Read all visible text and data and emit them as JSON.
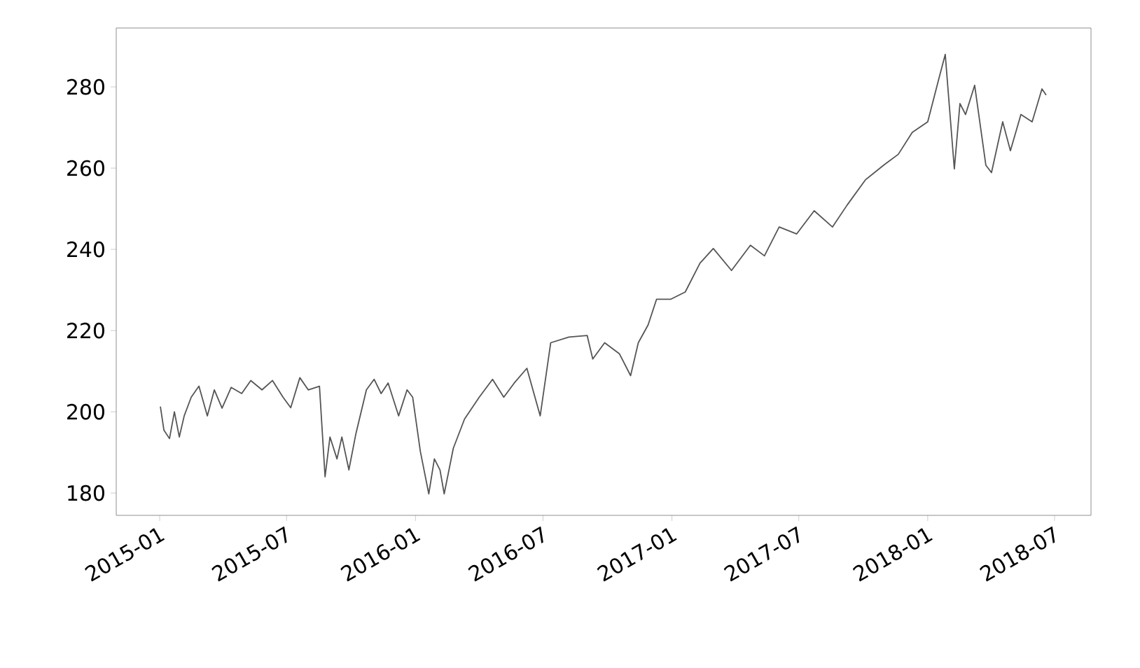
{
  "chart_data": {
    "type": "line",
    "xlim": [
      "2014-10-31",
      "2018-08-22"
    ],
    "ylim": [
      174.5,
      294.5
    ],
    "xticks": [
      "2015-01",
      "2015-07",
      "2016-01",
      "2016-07",
      "2017-01",
      "2017-07",
      "2018-01",
      "2018-07"
    ],
    "yticks": [
      180,
      200,
      220,
      240,
      260,
      280
    ],
    "x": [
      "2015-01-02",
      "2015-01-07",
      "2015-01-15",
      "2015-01-22",
      "2015-01-29",
      "2015-02-05",
      "2015-02-15",
      "2015-02-26",
      "2015-03-10",
      "2015-03-20",
      "2015-03-31",
      "2015-04-13",
      "2015-04-28",
      "2015-05-11",
      "2015-05-27",
      "2015-06-11",
      "2015-06-26",
      "2015-07-07",
      "2015-07-20",
      "2015-08-01",
      "2015-08-17",
      "2015-08-25",
      "2015-09-01",
      "2015-09-11",
      "2015-09-18",
      "2015-09-28",
      "2015-10-08",
      "2015-10-23",
      "2015-11-03",
      "2015-11-13",
      "2015-11-23",
      "2015-12-08",
      "2015-12-20",
      "2015-12-28",
      "2016-01-08",
      "2016-01-20",
      "2016-01-28",
      "2016-02-05",
      "2016-02-11",
      "2016-02-24",
      "2016-03-11",
      "2016-04-01",
      "2016-04-20",
      "2016-05-06",
      "2016-05-21",
      "2016-06-08",
      "2016-06-27",
      "2016-07-12",
      "2016-08-07",
      "2016-09-02",
      "2016-09-10",
      "2016-09-27",
      "2016-10-18",
      "2016-11-03",
      "2016-11-14",
      "2016-11-28",
      "2016-12-10",
      "2016-12-30",
      "2017-01-20",
      "2017-02-10",
      "2017-03-01",
      "2017-03-27",
      "2017-04-23",
      "2017-05-13",
      "2017-06-03",
      "2017-06-28",
      "2017-07-23",
      "2017-08-18",
      "2017-09-08",
      "2017-10-04",
      "2017-10-30",
      "2017-11-20",
      "2017-12-10",
      "2018-01-01",
      "2018-01-17",
      "2018-01-26",
      "2018-02-08",
      "2018-02-16",
      "2018-02-24",
      "2018-03-09",
      "2018-03-25",
      "2018-04-02",
      "2018-04-18",
      "2018-04-29",
      "2018-05-14",
      "2018-05-30",
      "2018-06-13",
      "2018-06-19"
    ],
    "series": [
      {
        "color": "#555555",
        "line_style": "solid",
        "values": [
          201.3,
          195.5,
          193.4,
          200,
          193.8,
          199,
          203.6,
          206.3,
          199,
          205.4,
          200.9,
          206,
          204.5,
          207.7,
          205.4,
          207.7,
          203.6,
          201,
          208.4,
          205.4,
          206.3,
          184,
          193.8,
          188.4,
          193.8,
          185.7,
          194.6,
          205.4,
          208,
          204.5,
          207.1,
          199,
          205.4,
          203.6,
          190.2,
          179.8,
          188.4,
          185.7,
          179.8,
          191,
          198.2,
          203.6,
          208,
          203.6,
          207.1,
          210.7,
          199,
          217,
          218.4,
          218.8,
          213,
          217,
          214.3,
          208.9,
          217,
          221.4,
          227.7,
          227.7,
          229.5,
          236.6,
          240.2,
          234.8,
          241,
          238.4,
          245.5,
          243.8,
          249.5,
          245.5,
          250.9,
          257.1,
          260.7,
          263.4,
          268.8,
          271.4,
          282.1,
          288,
          259.8,
          275.9,
          273.2,
          280.4,
          260.7,
          258.9,
          271.4,
          264.3,
          273.2,
          271.4,
          279.5,
          278
        ]
      }
    ]
  }
}
